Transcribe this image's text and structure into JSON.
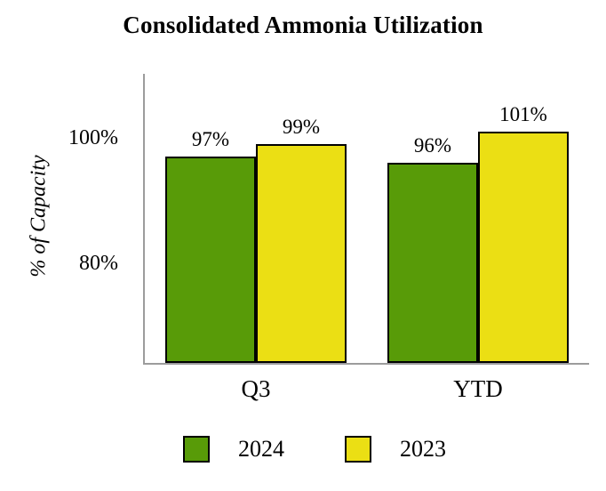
{
  "chart_data": {
    "type": "bar",
    "title": "Consolidated Ammonia Utilization",
    "ylabel": "% of Capacity",
    "xlabel": "",
    "categories": [
      "Q3",
      "YTD"
    ],
    "series": [
      {
        "name": "2024",
        "color": "#589B08",
        "values": [
          97,
          96
        ],
        "labels": [
          "97%",
          "96%"
        ]
      },
      {
        "name": "2023",
        "color": "#EBDF14",
        "values": [
          99,
          101
        ],
        "labels": [
          "99%",
          "101%"
        ]
      }
    ],
    "yticks": [
      {
        "value": 100,
        "label": "100%"
      },
      {
        "value": 80,
        "label": "80%"
      }
    ],
    "ylim": [
      64,
      110
    ],
    "grid": false,
    "legend_position": "bottom",
    "bar_border_color": "#000000",
    "axis_color": "#9c9c9c"
  }
}
